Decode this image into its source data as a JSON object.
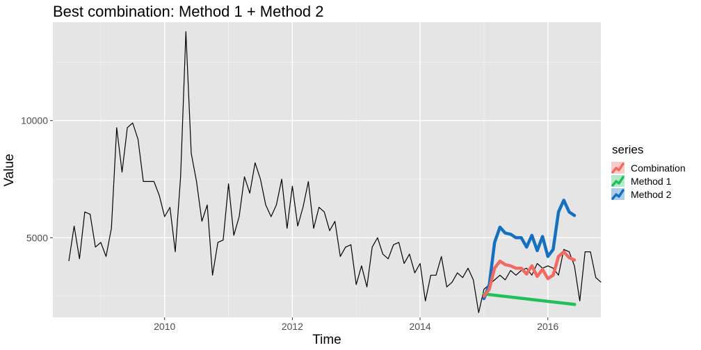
{
  "chart_data": {
    "type": "line",
    "title": "Best combination:  Method 1 + Method 2",
    "xlabel": "Time",
    "ylabel": "Value",
    "xlim": [
      2008.25,
      2016.83
    ],
    "ylim": [
      1600,
      14200
    ],
    "x_ticks": [
      2010,
      2012,
      2014,
      2016
    ],
    "x_tick_labels": [
      "2010",
      "2012",
      "2014",
      "2016"
    ],
    "y_ticks": [
      5000,
      10000
    ],
    "y_tick_labels": [
      "5000",
      "10000"
    ],
    "grid": true,
    "background": "#e5e5e5",
    "legend": {
      "title": "series",
      "placement": "right",
      "entries": [
        {
          "label": "Combination",
          "color": "#f06a62"
        },
        {
          "label": "Method 1",
          "color": "#22c05b"
        },
        {
          "label": "Method 2",
          "color": "#1570c2"
        }
      ]
    },
    "actual": {
      "color": "#000000",
      "start": 2008.5,
      "step": 0.0833333,
      "values": [
        4000,
        5500,
        4100,
        6100,
        6000,
        4600,
        4800,
        4200,
        5400,
        9700,
        7800,
        9700,
        9900,
        9200,
        7400,
        7400,
        7400,
        6800,
        5900,
        6300,
        4400,
        7600,
        13800,
        8600,
        7400,
        5700,
        6400,
        3400,
        4800,
        4900,
        7300,
        5100,
        5900,
        7600,
        6900,
        8200,
        7500,
        6400,
        5900,
        6400,
        7500,
        5400,
        7200,
        5500,
        6300,
        7400,
        5400,
        6300,
        6100,
        5300,
        5700,
        4200,
        4600,
        4700,
        3000,
        3800,
        2900,
        4600,
        5000,
        4300,
        4100,
        4700,
        4800,
        3900,
        4300,
        3500,
        3900,
        2300,
        3400,
        3400,
        4200,
        2900,
        3100,
        3500,
        3300,
        3700,
        3200,
        1800,
        2800,
        3000,
        3200,
        3400,
        3200,
        3600,
        3400,
        3600,
        3700,
        3400,
        3900,
        3700,
        3800,
        3700,
        3400,
        4500,
        4400,
        3800,
        2300,
        4400,
        4400,
        3300,
        3100
      ]
    },
    "series": [
      {
        "name": "Method 1",
        "color": "#22c05b",
        "x": [
          2015.0,
          2016.42
        ],
        "values": [
          2600,
          2150
        ]
      },
      {
        "name": "Method 2",
        "color": "#1570c2",
        "x": [
          2015.0,
          2015.0833,
          2015.1667,
          2015.25,
          2015.3333,
          2015.4167,
          2015.5,
          2015.5833,
          2015.6667,
          2015.75,
          2015.8333,
          2015.9167,
          2016.0,
          2016.0833,
          2016.1667,
          2016.25,
          2016.3333,
          2016.4167
        ],
        "values": [
          2400,
          3000,
          4800,
          5450,
          5200,
          5150,
          5000,
          5000,
          4600,
          5100,
          4450,
          5050,
          4200,
          4500,
          6100,
          6600,
          6100,
          5950
        ]
      },
      {
        "name": "Combination",
        "color": "#f06a62",
        "x": [
          2015.0,
          2015.0833,
          2015.1667,
          2015.25,
          2015.3333,
          2015.4167,
          2015.5,
          2015.5833,
          2015.6667,
          2015.75,
          2015.8333,
          2015.9167,
          2016.0,
          2016.0833,
          2016.1667,
          2016.25,
          2016.3333,
          2016.4167
        ],
        "values": [
          2500,
          2800,
          3700,
          4000,
          3850,
          3800,
          3700,
          3700,
          3450,
          3800,
          3350,
          3650,
          3250,
          3400,
          4200,
          4400,
          4150,
          4050
        ]
      }
    ]
  }
}
